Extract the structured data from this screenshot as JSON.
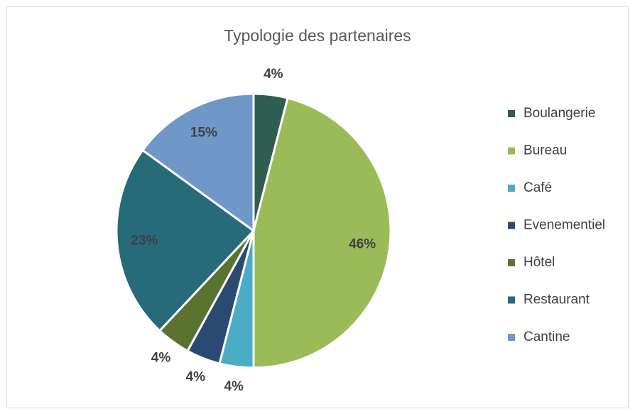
{
  "chart_data": {
    "type": "pie",
    "title": "Typologie des partenaires",
    "categories": [
      "Boulangerie",
      "Bureau",
      "Café",
      "Evenementiel",
      "Hôtel",
      "Restaurant",
      "Cantine"
    ],
    "values": [
      4,
      46,
      4,
      4,
      4,
      23,
      15
    ],
    "value_labels": [
      "4%",
      "46%",
      "4%",
      "4%",
      "4%",
      "23%",
      "15%"
    ],
    "colors": [
      "#2f5e50",
      "#9bbb59",
      "#4bacc6",
      "#2b4a72",
      "#5b7330",
      "#276a7a",
      "#6f98c8"
    ],
    "legend": "right"
  }
}
